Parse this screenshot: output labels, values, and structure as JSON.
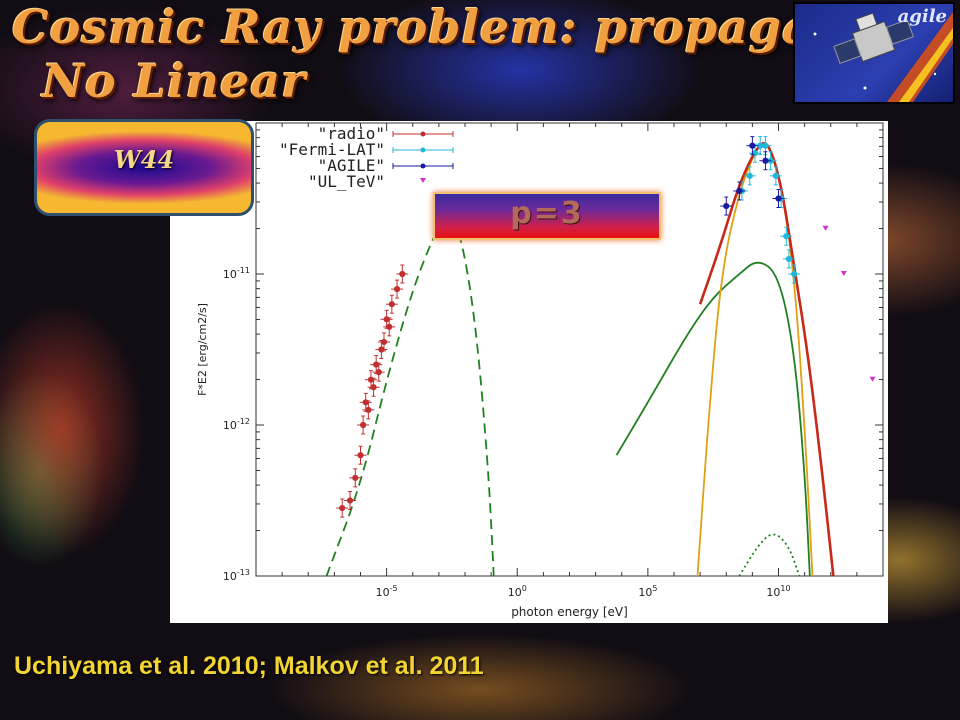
{
  "slide": {
    "title_line1": "Cosmic Ray problem: propagation",
    "title_line2": "No Linear",
    "source_label": "W44",
    "parameter_label": "p=3",
    "citation": "Uchiyama et al. 2010; Malkov et al. 2011",
    "logo_text": "agile"
  },
  "chart_data": {
    "type": "scatter",
    "title": "",
    "xlabel": "photon energy [eV]",
    "ylabel": "F*E^2 [erg/cm2/s]",
    "x_scale": "log",
    "y_scale": "log",
    "xlim_log10": [
      -10,
      14
    ],
    "ylim_log10": [
      -13,
      -10
    ],
    "x_tick_labels": [
      "10^-5",
      "10^0",
      "10^5",
      "10^10"
    ],
    "x_tick_values_log10": [
      -5,
      0,
      5,
      10
    ],
    "y_tick_labels": [
      "10^-13",
      "10^-12",
      "10^-11"
    ],
    "y_tick_values_log10": [
      -13,
      -12,
      -11
    ],
    "legend_position": "top-left",
    "colors": {
      "radio": "#c03030",
      "fermi": "#20b8d8",
      "agile": "#1a1aa0",
      "ul_tev": "#d030d0",
      "total": "#c82818",
      "pion": "#e0a010",
      "ic": "#208020"
    },
    "series": [
      {
        "name": "\"radio\"",
        "marker": "errorbar-circle",
        "points_log10": [
          [
            -6.7,
            -12.55
          ],
          [
            -6.4,
            -12.5
          ],
          [
            -6.2,
            -12.35
          ],
          [
            -6.0,
            -12.2
          ],
          [
            -5.9,
            -12.0
          ],
          [
            -5.8,
            -11.85
          ],
          [
            -5.7,
            -11.9
          ],
          [
            -5.6,
            -11.7
          ],
          [
            -5.5,
            -11.75
          ],
          [
            -5.4,
            -11.6
          ],
          [
            -5.3,
            -11.65
          ],
          [
            -5.2,
            -11.5
          ],
          [
            -5.1,
            -11.45
          ],
          [
            -5.0,
            -11.3
          ],
          [
            -4.9,
            -11.35
          ],
          [
            -4.8,
            -11.2
          ],
          [
            -4.6,
            -11.1
          ],
          [
            -4.4,
            -11.0
          ]
        ]
      },
      {
        "name": "\"Fermi-LAT\"",
        "marker": "errorbar-circle",
        "points_log10": [
          [
            8.6,
            -10.45
          ],
          [
            8.9,
            -10.35
          ],
          [
            9.1,
            -10.2
          ],
          [
            9.3,
            -10.15
          ],
          [
            9.5,
            -10.15
          ],
          [
            9.7,
            -10.25
          ],
          [
            9.9,
            -10.35
          ],
          [
            10.1,
            -10.5
          ],
          [
            10.3,
            -10.75
          ],
          [
            10.4,
            -10.9
          ],
          [
            10.6,
            -11.0
          ]
        ]
      },
      {
        "name": "\"AGILE\"",
        "marker": "errorbar-circle",
        "points_log10": [
          [
            8.0,
            -10.55
          ],
          [
            8.5,
            -10.45
          ],
          [
            9.0,
            -10.15
          ],
          [
            9.5,
            -10.25
          ],
          [
            10.0,
            -10.5
          ]
        ]
      },
      {
        "name": "\"UL_TeV\"",
        "marker": "triangle-down",
        "points_log10": [
          [
            11.8,
            -10.7
          ],
          [
            12.5,
            -11.0
          ],
          [
            13.6,
            -11.7
          ]
        ]
      }
    ],
    "model_curves": [
      {
        "id": "synchrotron",
        "style": "dashed",
        "color": "#208020",
        "points_log10": [
          [
            -7.3,
            -13.0
          ],
          [
            -6,
            -12.4
          ],
          [
            -5,
            -11.7
          ],
          [
            -4,
            -11.1
          ],
          [
            -3.2,
            -10.75
          ],
          [
            -2.7,
            -10.6
          ],
          [
            -2.2,
            -10.7
          ],
          [
            -1.6,
            -11.3
          ],
          [
            -1.1,
            -12.3
          ],
          [
            -0.9,
            -13.0
          ]
        ]
      },
      {
        "id": "inverse_compton",
        "style": "solid",
        "color": "#208020",
        "points_log10": [
          [
            3.8,
            -12.2
          ],
          [
            5,
            -11.85
          ],
          [
            6.5,
            -11.4
          ],
          [
            7.5,
            -11.15
          ],
          [
            8.5,
            -11.0
          ],
          [
            9.2,
            -10.9
          ],
          [
            10,
            -11.0
          ],
          [
            10.6,
            -11.5
          ],
          [
            11,
            -12.3
          ],
          [
            11.2,
            -13.0
          ]
        ]
      },
      {
        "id": "pion_decay",
        "style": "solid",
        "color": "#e0a010",
        "points_log10": [
          [
            6.9,
            -13.0
          ],
          [
            7.3,
            -12.0
          ],
          [
            7.8,
            -11.0
          ],
          [
            8.5,
            -10.45
          ],
          [
            9.2,
            -10.15
          ],
          [
            9.6,
            -10.12
          ],
          [
            10.1,
            -10.4
          ],
          [
            10.6,
            -11.0
          ],
          [
            11.0,
            -12.0
          ],
          [
            11.3,
            -13.0
          ]
        ]
      },
      {
        "id": "total",
        "style": "solid",
        "color": "#c82818",
        "points_log10": [
          [
            7.0,
            -11.2
          ],
          [
            7.8,
            -10.8
          ],
          [
            8.5,
            -10.4
          ],
          [
            9.2,
            -10.15
          ],
          [
            9.6,
            -10.12
          ],
          [
            10.1,
            -10.4
          ],
          [
            10.6,
            -10.95
          ],
          [
            11.1,
            -11.5
          ],
          [
            11.6,
            -12.2
          ],
          [
            12.1,
            -13.0
          ]
        ]
      },
      {
        "id": "bremsstrahlung",
        "style": "dotted",
        "color": "#208020",
        "points_log10": [
          [
            8.5,
            -13.0
          ],
          [
            9.2,
            -12.8
          ],
          [
            9.8,
            -12.7
          ],
          [
            10.4,
            -12.8
          ],
          [
            10.8,
            -13.0
          ]
        ]
      }
    ]
  }
}
